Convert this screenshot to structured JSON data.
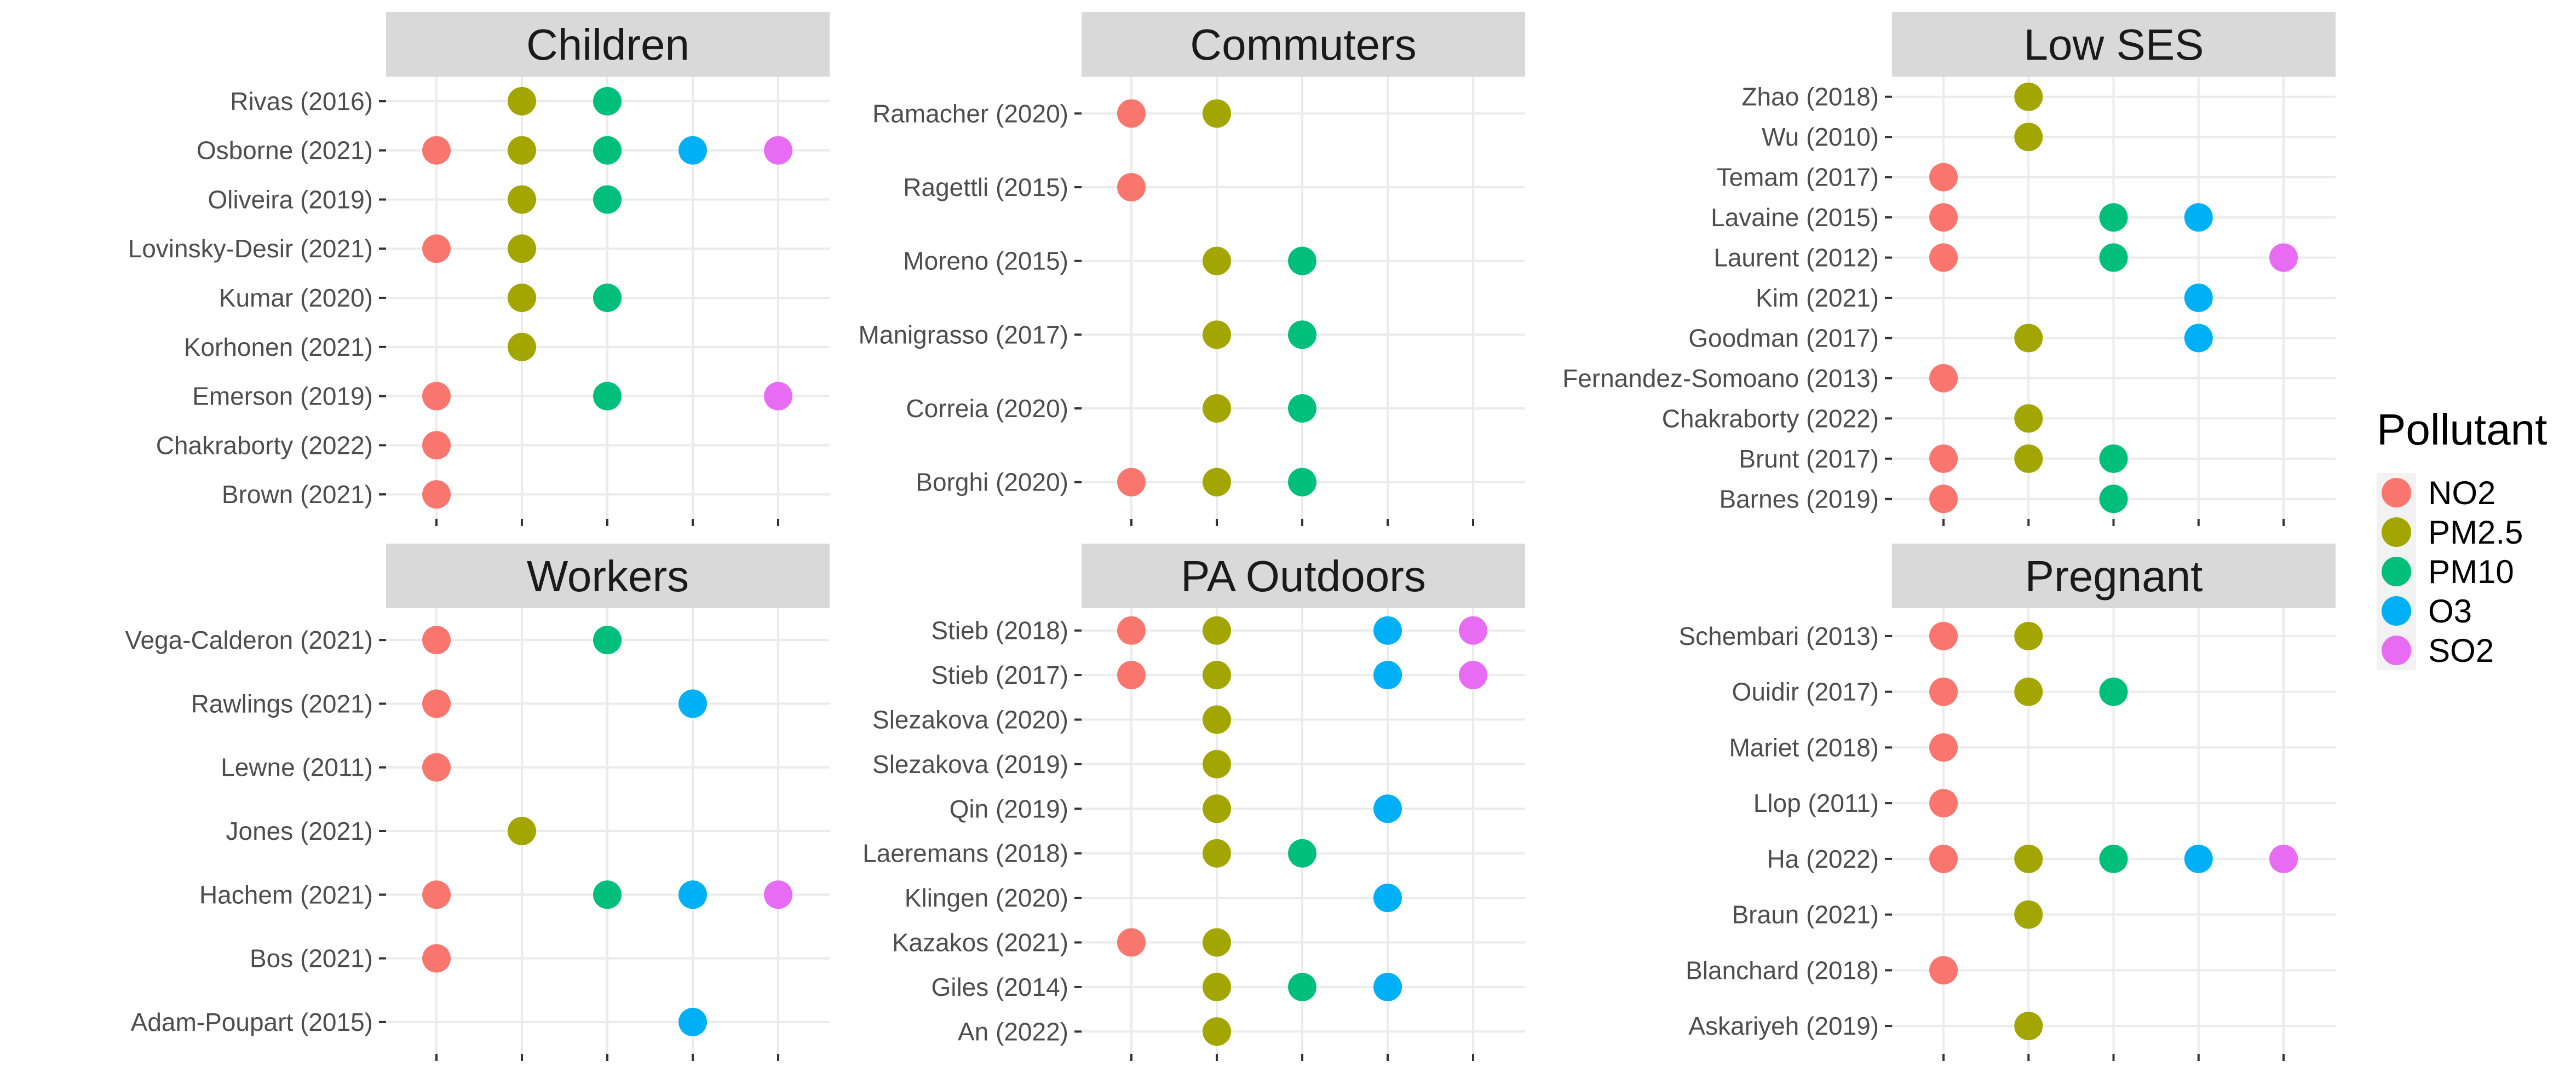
{
  "chart_data": {
    "type": "scatter",
    "x_categories": [
      "NO2",
      "PM2.5",
      "PM10",
      "O3",
      "SO2"
    ],
    "colors": {
      "NO2": "#F8766D",
      "PM2.5": "#A3A500",
      "PM10": "#00BF7D",
      "O3": "#00B0F6",
      "SO2": "#E76BF3"
    },
    "grid": true,
    "x_tick_labels_shown": false,
    "legend": {
      "title": "Pollutant",
      "placement": "right",
      "items": [
        "NO2",
        "PM2.5",
        "PM10",
        "O3",
        "SO2"
      ]
    },
    "panels": [
      {
        "title": "Children",
        "studies": [
          {
            "label": "Rivas (2016)",
            "pollutants": [
              "PM2.5",
              "PM10"
            ]
          },
          {
            "label": "Osborne (2021)",
            "pollutants": [
              "NO2",
              "PM2.5",
              "PM10",
              "O3",
              "SO2"
            ]
          },
          {
            "label": "Oliveira (2019)",
            "pollutants": [
              "PM2.5",
              "PM10"
            ]
          },
          {
            "label": "Lovinsky-Desir (2021)",
            "pollutants": [
              "NO2",
              "PM2.5"
            ]
          },
          {
            "label": "Kumar (2020)",
            "pollutants": [
              "PM2.5",
              "PM10"
            ]
          },
          {
            "label": "Korhonen (2021)",
            "pollutants": [
              "PM2.5"
            ]
          },
          {
            "label": "Emerson (2019)",
            "pollutants": [
              "NO2",
              "PM10",
              "SO2"
            ]
          },
          {
            "label": "Chakraborty (2022)",
            "pollutants": [
              "NO2"
            ]
          },
          {
            "label": "Brown (2021)",
            "pollutants": [
              "NO2"
            ]
          }
        ]
      },
      {
        "title": "Commuters",
        "studies": [
          {
            "label": "Ramacher (2020)",
            "pollutants": [
              "NO2",
              "PM2.5"
            ]
          },
          {
            "label": "Ragettli (2015)",
            "pollutants": [
              "NO2"
            ]
          },
          {
            "label": "Moreno (2015)",
            "pollutants": [
              "PM2.5",
              "PM10"
            ]
          },
          {
            "label": "Manigrasso (2017)",
            "pollutants": [
              "PM2.5",
              "PM10"
            ]
          },
          {
            "label": "Correia (2020)",
            "pollutants": [
              "PM2.5",
              "PM10"
            ]
          },
          {
            "label": "Borghi (2020)",
            "pollutants": [
              "NO2",
              "PM2.5",
              "PM10"
            ]
          }
        ]
      },
      {
        "title": "Low SES",
        "studies": [
          {
            "label": "Zhao (2018)",
            "pollutants": [
              "PM2.5"
            ]
          },
          {
            "label": "Wu (2010)",
            "pollutants": [
              "PM2.5"
            ]
          },
          {
            "label": "Temam (2017)",
            "pollutants": [
              "NO2"
            ]
          },
          {
            "label": "Lavaine (2015)",
            "pollutants": [
              "NO2",
              "PM10",
              "O3"
            ]
          },
          {
            "label": "Laurent (2012)",
            "pollutants": [
              "NO2",
              "PM10",
              "SO2"
            ]
          },
          {
            "label": "Kim (2021)",
            "pollutants": [
              "O3"
            ]
          },
          {
            "label": "Goodman (2017)",
            "pollutants": [
              "PM2.5",
              "O3"
            ]
          },
          {
            "label": "Fernandez-Somoano (2013)",
            "pollutants": [
              "NO2"
            ]
          },
          {
            "label": "Chakraborty (2022)",
            "pollutants": [
              "PM2.5"
            ]
          },
          {
            "label": "Brunt (2017)",
            "pollutants": [
              "NO2",
              "PM2.5",
              "PM10"
            ]
          },
          {
            "label": "Barnes (2019)",
            "pollutants": [
              "NO2",
              "PM10"
            ]
          }
        ]
      },
      {
        "title": "Workers",
        "studies": [
          {
            "label": "Vega-Calderon (2021)",
            "pollutants": [
              "NO2",
              "PM10"
            ]
          },
          {
            "label": "Rawlings (2021)",
            "pollutants": [
              "NO2",
              "O3"
            ]
          },
          {
            "label": "Lewne (2011)",
            "pollutants": [
              "NO2"
            ]
          },
          {
            "label": "Jones (2021)",
            "pollutants": [
              "PM2.5"
            ]
          },
          {
            "label": "Hachem (2021)",
            "pollutants": [
              "NO2",
              "PM10",
              "O3",
              "SO2"
            ]
          },
          {
            "label": "Bos (2021)",
            "pollutants": [
              "NO2"
            ]
          },
          {
            "label": "Adam-Poupart (2015)",
            "pollutants": [
              "O3"
            ]
          }
        ]
      },
      {
        "title": "PA Outdoors",
        "studies": [
          {
            "label": "Stieb (2018)",
            "pollutants": [
              "NO2",
              "PM2.5",
              "O3",
              "SO2"
            ]
          },
          {
            "label": "Stieb (2017)",
            "pollutants": [
              "NO2",
              "PM2.5",
              "O3",
              "SO2"
            ]
          },
          {
            "label": "Slezakova (2020)",
            "pollutants": [
              "PM2.5"
            ]
          },
          {
            "label": "Slezakova (2019)",
            "pollutants": [
              "PM2.5"
            ]
          },
          {
            "label": "Qin (2019)",
            "pollutants": [
              "PM2.5",
              "O3"
            ]
          },
          {
            "label": "Laeremans (2018)",
            "pollutants": [
              "PM2.5",
              "PM10"
            ]
          },
          {
            "label": "Klingen (2020)",
            "pollutants": [
              "O3"
            ]
          },
          {
            "label": "Kazakos (2021)",
            "pollutants": [
              "NO2",
              "PM2.5"
            ]
          },
          {
            "label": "Giles (2014)",
            "pollutants": [
              "PM2.5",
              "PM10",
              "O3"
            ]
          },
          {
            "label": "An (2022)",
            "pollutants": [
              "PM2.5"
            ]
          }
        ]
      },
      {
        "title": "Pregnant",
        "studies": [
          {
            "label": "Schembari (2013)",
            "pollutants": [
              "NO2",
              "PM2.5"
            ]
          },
          {
            "label": "Ouidir (2017)",
            "pollutants": [
              "NO2",
              "PM2.5",
              "PM10"
            ]
          },
          {
            "label": "Mariet (2018)",
            "pollutants": [
              "NO2"
            ]
          },
          {
            "label": "Llop (2011)",
            "pollutants": [
              "NO2"
            ]
          },
          {
            "label": "Ha (2022)",
            "pollutants": [
              "NO2",
              "PM2.5",
              "PM10",
              "O3",
              "SO2"
            ]
          },
          {
            "label": "Braun (2021)",
            "pollutants": [
              "PM2.5"
            ]
          },
          {
            "label": "Blanchard (2018)",
            "pollutants": [
              "NO2"
            ]
          },
          {
            "label": "Askariyeh (2019)",
            "pollutants": [
              "PM2.5"
            ]
          }
        ]
      }
    ]
  }
}
